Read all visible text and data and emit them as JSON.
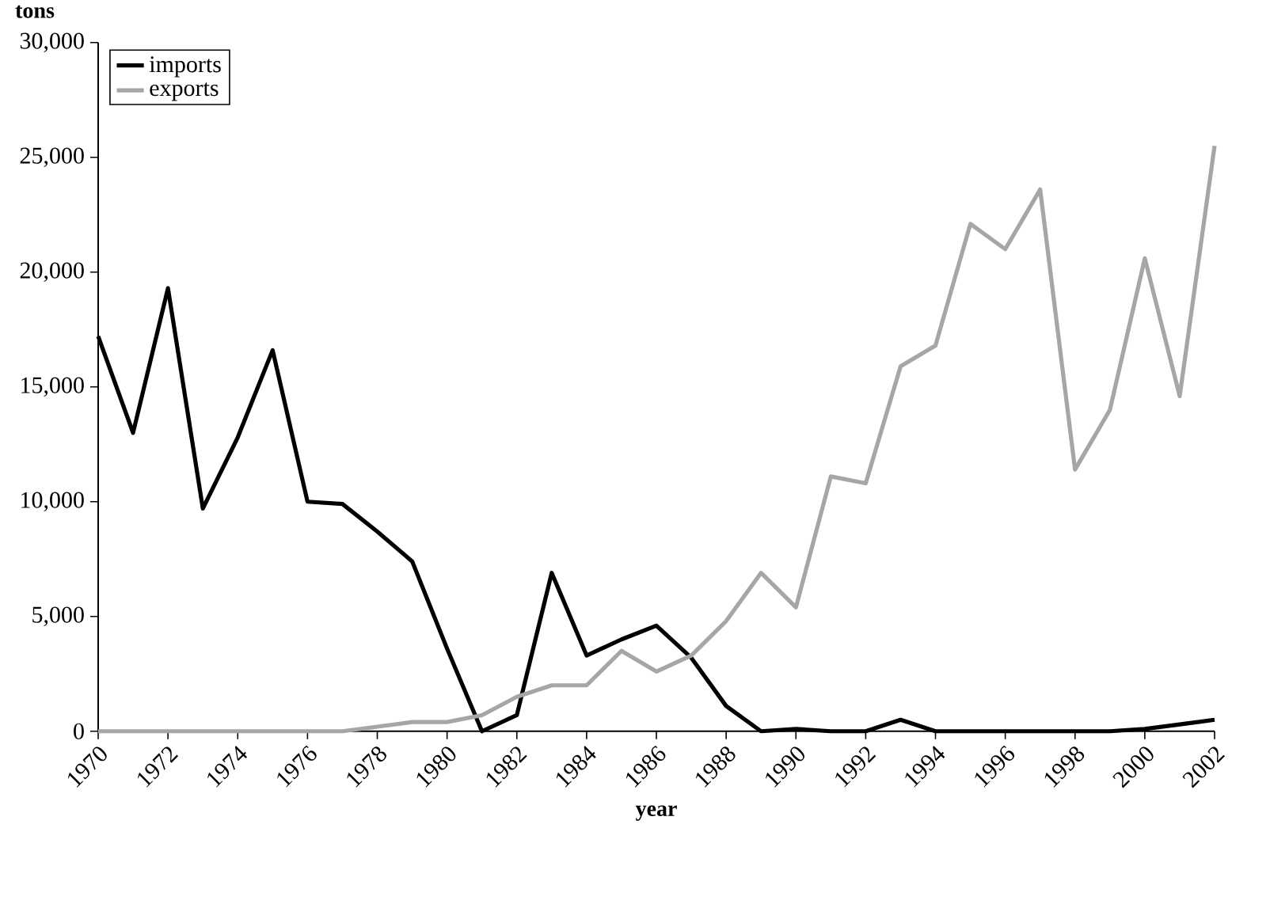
{
  "chart_data": {
    "type": "line",
    "xlabel": "year",
    "ylabel": "tons",
    "x": [
      1970,
      1971,
      1972,
      1973,
      1974,
      1975,
      1976,
      1977,
      1978,
      1979,
      1980,
      1981,
      1982,
      1983,
      1984,
      1985,
      1986,
      1987,
      1988,
      1989,
      1990,
      1991,
      1992,
      1993,
      1994,
      1995,
      1996,
      1997,
      1998,
      1999,
      2000,
      2001,
      2002
    ],
    "series": [
      {
        "name": "imports",
        "color": "#000000",
        "values": [
          17200,
          13000,
          19300,
          9700,
          12800,
          16600,
          10000,
          9900,
          8700,
          7400,
          3600,
          0,
          700,
          6900,
          3300,
          4000,
          4600,
          3200,
          1100,
          0,
          100,
          0,
          0,
          500,
          0,
          0,
          0,
          0,
          0,
          0,
          100,
          300,
          500
        ]
      },
      {
        "name": "exports",
        "color": "#a6a6a6",
        "values": [
          0,
          0,
          0,
          0,
          0,
          0,
          0,
          0,
          200,
          400,
          400,
          700,
          1500,
          2000,
          2000,
          3500,
          2600,
          3300,
          4800,
          6900,
          5400,
          11100,
          10800,
          15900,
          16800,
          22100,
          21000,
          23600,
          11400,
          14000,
          20600,
          14600,
          25500
        ]
      }
    ],
    "xlim": [
      1970,
      2002
    ],
    "ylim": [
      0,
      30000
    ],
    "xticks": [
      1970,
      1972,
      1974,
      1976,
      1978,
      1980,
      1982,
      1984,
      1986,
      1988,
      1990,
      1992,
      1994,
      1996,
      1998,
      2000,
      2002
    ],
    "yticks": [
      0,
      {
        "value": 5000,
        "label": "5,000"
      },
      {
        "value": 10000,
        "label": "10,000"
      },
      {
        "value": 15000,
        "label": "15,000"
      },
      {
        "value": 20000,
        "label": "20,000"
      },
      {
        "value": 25000,
        "label": "25,000"
      },
      {
        "value": 30000,
        "label": "30,000"
      }
    ],
    "legend": "top left",
    "grid": false,
    "marker": "none",
    "line_style": "solid"
  }
}
